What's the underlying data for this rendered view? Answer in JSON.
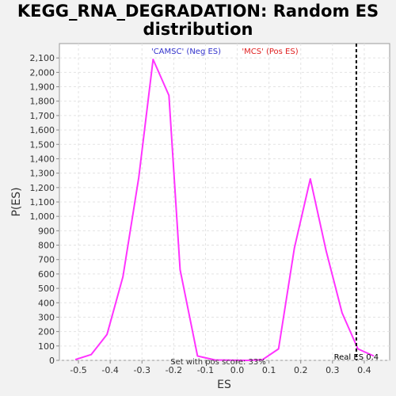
{
  "chart_data": {
    "type": "line",
    "title_line1": "KEGG_RNA_DEGRADATION: Random ES",
    "title_line2": "distribution",
    "xlabel": "ES",
    "ylabel": "P(ES)",
    "xlim": [
      -0.56,
      0.48
    ],
    "ylim": [
      0,
      2200
    ],
    "x_ticks": [
      -0.5,
      -0.4,
      -0.3,
      -0.2,
      -0.1,
      0.0,
      0.1,
      0.2,
      0.3,
      0.4
    ],
    "x_tick_labels": [
      "-0.5",
      "-0.4",
      "-0.3",
      "-0.2",
      "-0.1",
      "0.0",
      "0.1",
      "0.2",
      "0.3",
      "0.4"
    ],
    "y_ticks": [
      0,
      100,
      200,
      300,
      400,
      500,
      600,
      700,
      800,
      900,
      1000,
      1100,
      1200,
      1300,
      1400,
      1500,
      1600,
      1700,
      1800,
      1900,
      2000,
      2100
    ],
    "y_tick_labels": [
      "0",
      "100",
      "200",
      "300",
      "400",
      "500",
      "600",
      "700",
      "800",
      "900",
      "1,000",
      "1,100",
      "1,200",
      "1,300",
      "1,400",
      "1,500",
      "1,600",
      "1,700",
      "1,800",
      "1,900",
      "2,000",
      "2,100"
    ],
    "grid": true,
    "series": [
      {
        "color": "#ff33ff",
        "x": [
          -0.51,
          -0.46,
          -0.41,
          -0.36,
          -0.31,
          -0.265,
          -0.215,
          -0.18,
          -0.125,
          -0.07,
          -0.02,
          0.03,
          0.08,
          0.13,
          0.18,
          0.23,
          0.28,
          0.33,
          0.38,
          0.43
        ],
        "y": [
          5,
          40,
          180,
          580,
          1270,
          2090,
          1840,
          630,
          30,
          3,
          1,
          0,
          5,
          80,
          780,
          1260,
          760,
          330,
          80,
          30
        ]
      }
    ],
    "real_es": {
      "x": 0.375,
      "label": "Real ES 0.4",
      "color": "#000000"
    },
    "annotations": {
      "neg_label": "'CAMSC' (Neg ES)",
      "neg_color": "#3333cc",
      "pos_label": "'MCS' (Pos ES)",
      "pos_color": "#e02020",
      "bottom_partial_text": "Set with pos score: 33%"
    }
  }
}
